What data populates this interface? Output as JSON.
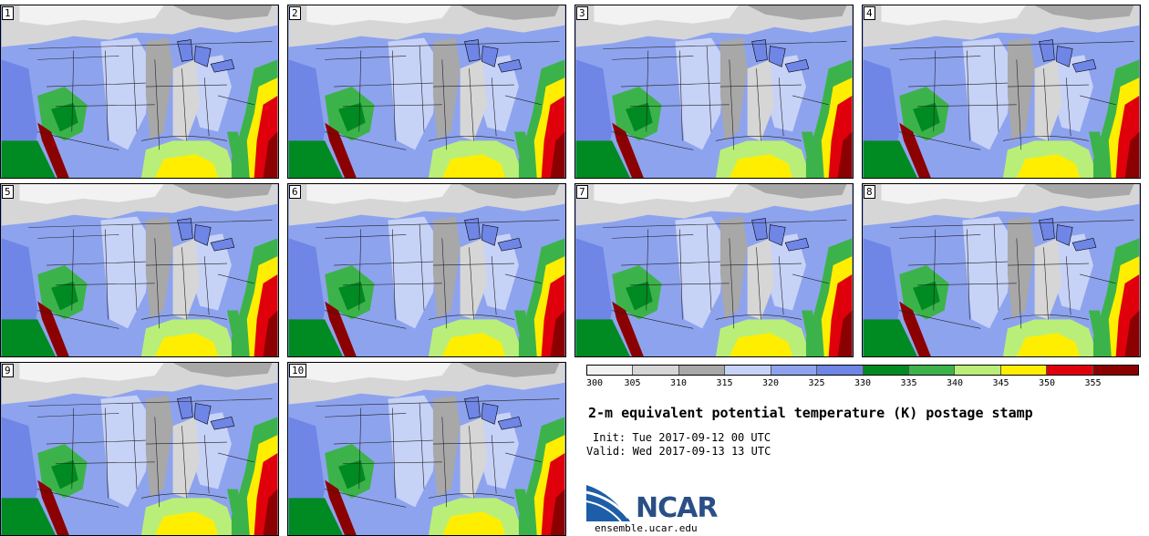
{
  "panels": [
    {
      "label": "1"
    },
    {
      "label": "2"
    },
    {
      "label": "3"
    },
    {
      "label": "4"
    },
    {
      "label": "5"
    },
    {
      "label": "6"
    },
    {
      "label": "7"
    },
    {
      "label": "8"
    },
    {
      "label": "9"
    },
    {
      "label": "10"
    }
  ],
  "colorbar": {
    "colors": [
      "#f2f2f2",
      "#d6d6d6",
      "#a8a8a8",
      "#c7d2f7",
      "#8ea3ee",
      "#6f86e6",
      "#008a22",
      "#3cb34a",
      "#b9ef79",
      "#ffee00",
      "#e0000c",
      "#8b0000"
    ],
    "ticks": [
      "300",
      "305",
      "310",
      "315",
      "320",
      "325",
      "330",
      "335",
      "340",
      "345",
      "350",
      "355"
    ]
  },
  "title": "2-m equivalent potential temperature (K) postage stamp",
  "init": "Init: Tue 2017-09-12 00 UTC",
  "valid": "Valid: Wed 2017-09-13 13 UTC",
  "logo": {
    "text": "NCAR",
    "url": "ensemble.ucar.edu"
  }
}
